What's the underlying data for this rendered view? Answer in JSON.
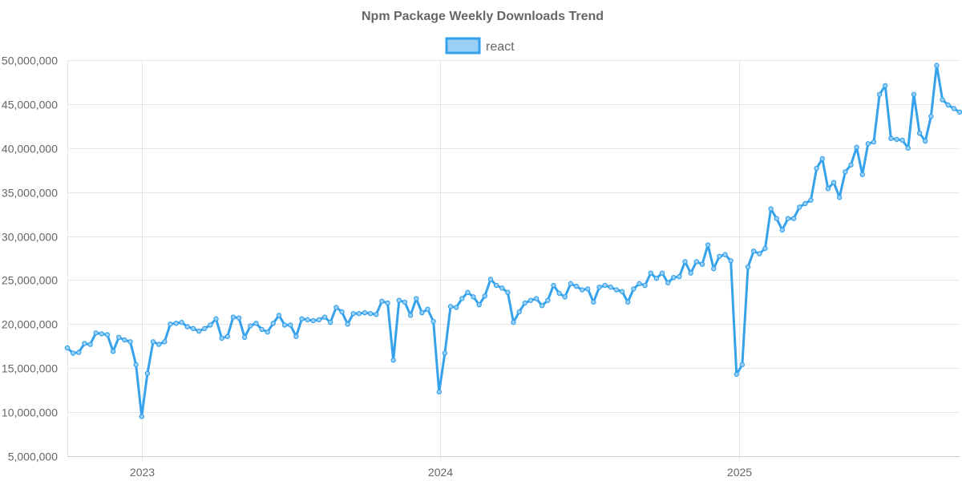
{
  "chart_data": {
    "type": "line",
    "title": "Npm Package Weekly Downloads Trend",
    "xlabel": "",
    "ylabel": "",
    "start_date": "2022-10-02",
    "interval_days": 7,
    "x_ticks": [
      {
        "label": "2023",
        "date": "2023-01-01"
      },
      {
        "label": "2024",
        "date": "2024-01-01"
      },
      {
        "label": "2025",
        "date": "2025-01-01"
      }
    ],
    "y_ticks": [
      5000000,
      10000000,
      15000000,
      20000000,
      25000000,
      30000000,
      35000000,
      40000000,
      45000000,
      50000000
    ],
    "y_tick_labels": [
      "5,000,000",
      "10,000,000",
      "15,000,000",
      "20,000,000",
      "25,000,000",
      "30,000,000",
      "35,000,000",
      "40,000,000",
      "45,000,000",
      "50,000,000"
    ],
    "ylim": [
      5000000,
      50000000
    ],
    "grid": true,
    "legend_position": "top-center",
    "series": [
      {
        "name": "react",
        "color": "#36a2eb",
        "fill": "#9ad0f5",
        "values": [
          17300000,
          16700000,
          16800000,
          17800000,
          17700000,
          19000000,
          18900000,
          18800000,
          16900000,
          18500000,
          18200000,
          18000000,
          15400000,
          9500000,
          14400000,
          18000000,
          17700000,
          18000000,
          20000000,
          20100000,
          20200000,
          19700000,
          19500000,
          19200000,
          19500000,
          19900000,
          20600000,
          18400000,
          18600000,
          20800000,
          20700000,
          18500000,
          19800000,
          20100000,
          19400000,
          19100000,
          20100000,
          21000000,
          19900000,
          19900000,
          18600000,
          20600000,
          20500000,
          20400000,
          20500000,
          20800000,
          20200000,
          21900000,
          21400000,
          20000000,
          21200000,
          21200000,
          21300000,
          21200000,
          21100000,
          22600000,
          22400000,
          15900000,
          22700000,
          22500000,
          21000000,
          22900000,
          21300000,
          21700000,
          20300000,
          12300000,
          16700000,
          22000000,
          21900000,
          22900000,
          23600000,
          23100000,
          22200000,
          23200000,
          25100000,
          24400000,
          24100000,
          23600000,
          20200000,
          21400000,
          22400000,
          22700000,
          22900000,
          22100000,
          22700000,
          24400000,
          23500000,
          23100000,
          24600000,
          24300000,
          23900000,
          24000000,
          22500000,
          24200000,
          24400000,
          24200000,
          23900000,
          23700000,
          22500000,
          24000000,
          24600000,
          24400000,
          25800000,
          25200000,
          25800000,
          24700000,
          25300000,
          25400000,
          27100000,
          25800000,
          27100000,
          26800000,
          29000000,
          26300000,
          27700000,
          27900000,
          27200000,
          14300000,
          15400000,
          26500000,
          28300000,
          28000000,
          28600000,
          33100000,
          32000000,
          30700000,
          32000000,
          32000000,
          33300000,
          33700000,
          34100000,
          37700000,
          38800000,
          35400000,
          36100000,
          34400000,
          37300000,
          38100000,
          40100000,
          37000000,
          40500000,
          40700000,
          46100000,
          47100000,
          41100000,
          41000000,
          40900000,
          40000000,
          46100000,
          41700000,
          40800000,
          43600000,
          49400000,
          45500000,
          44900000,
          44500000,
          44100000
        ]
      }
    ]
  }
}
